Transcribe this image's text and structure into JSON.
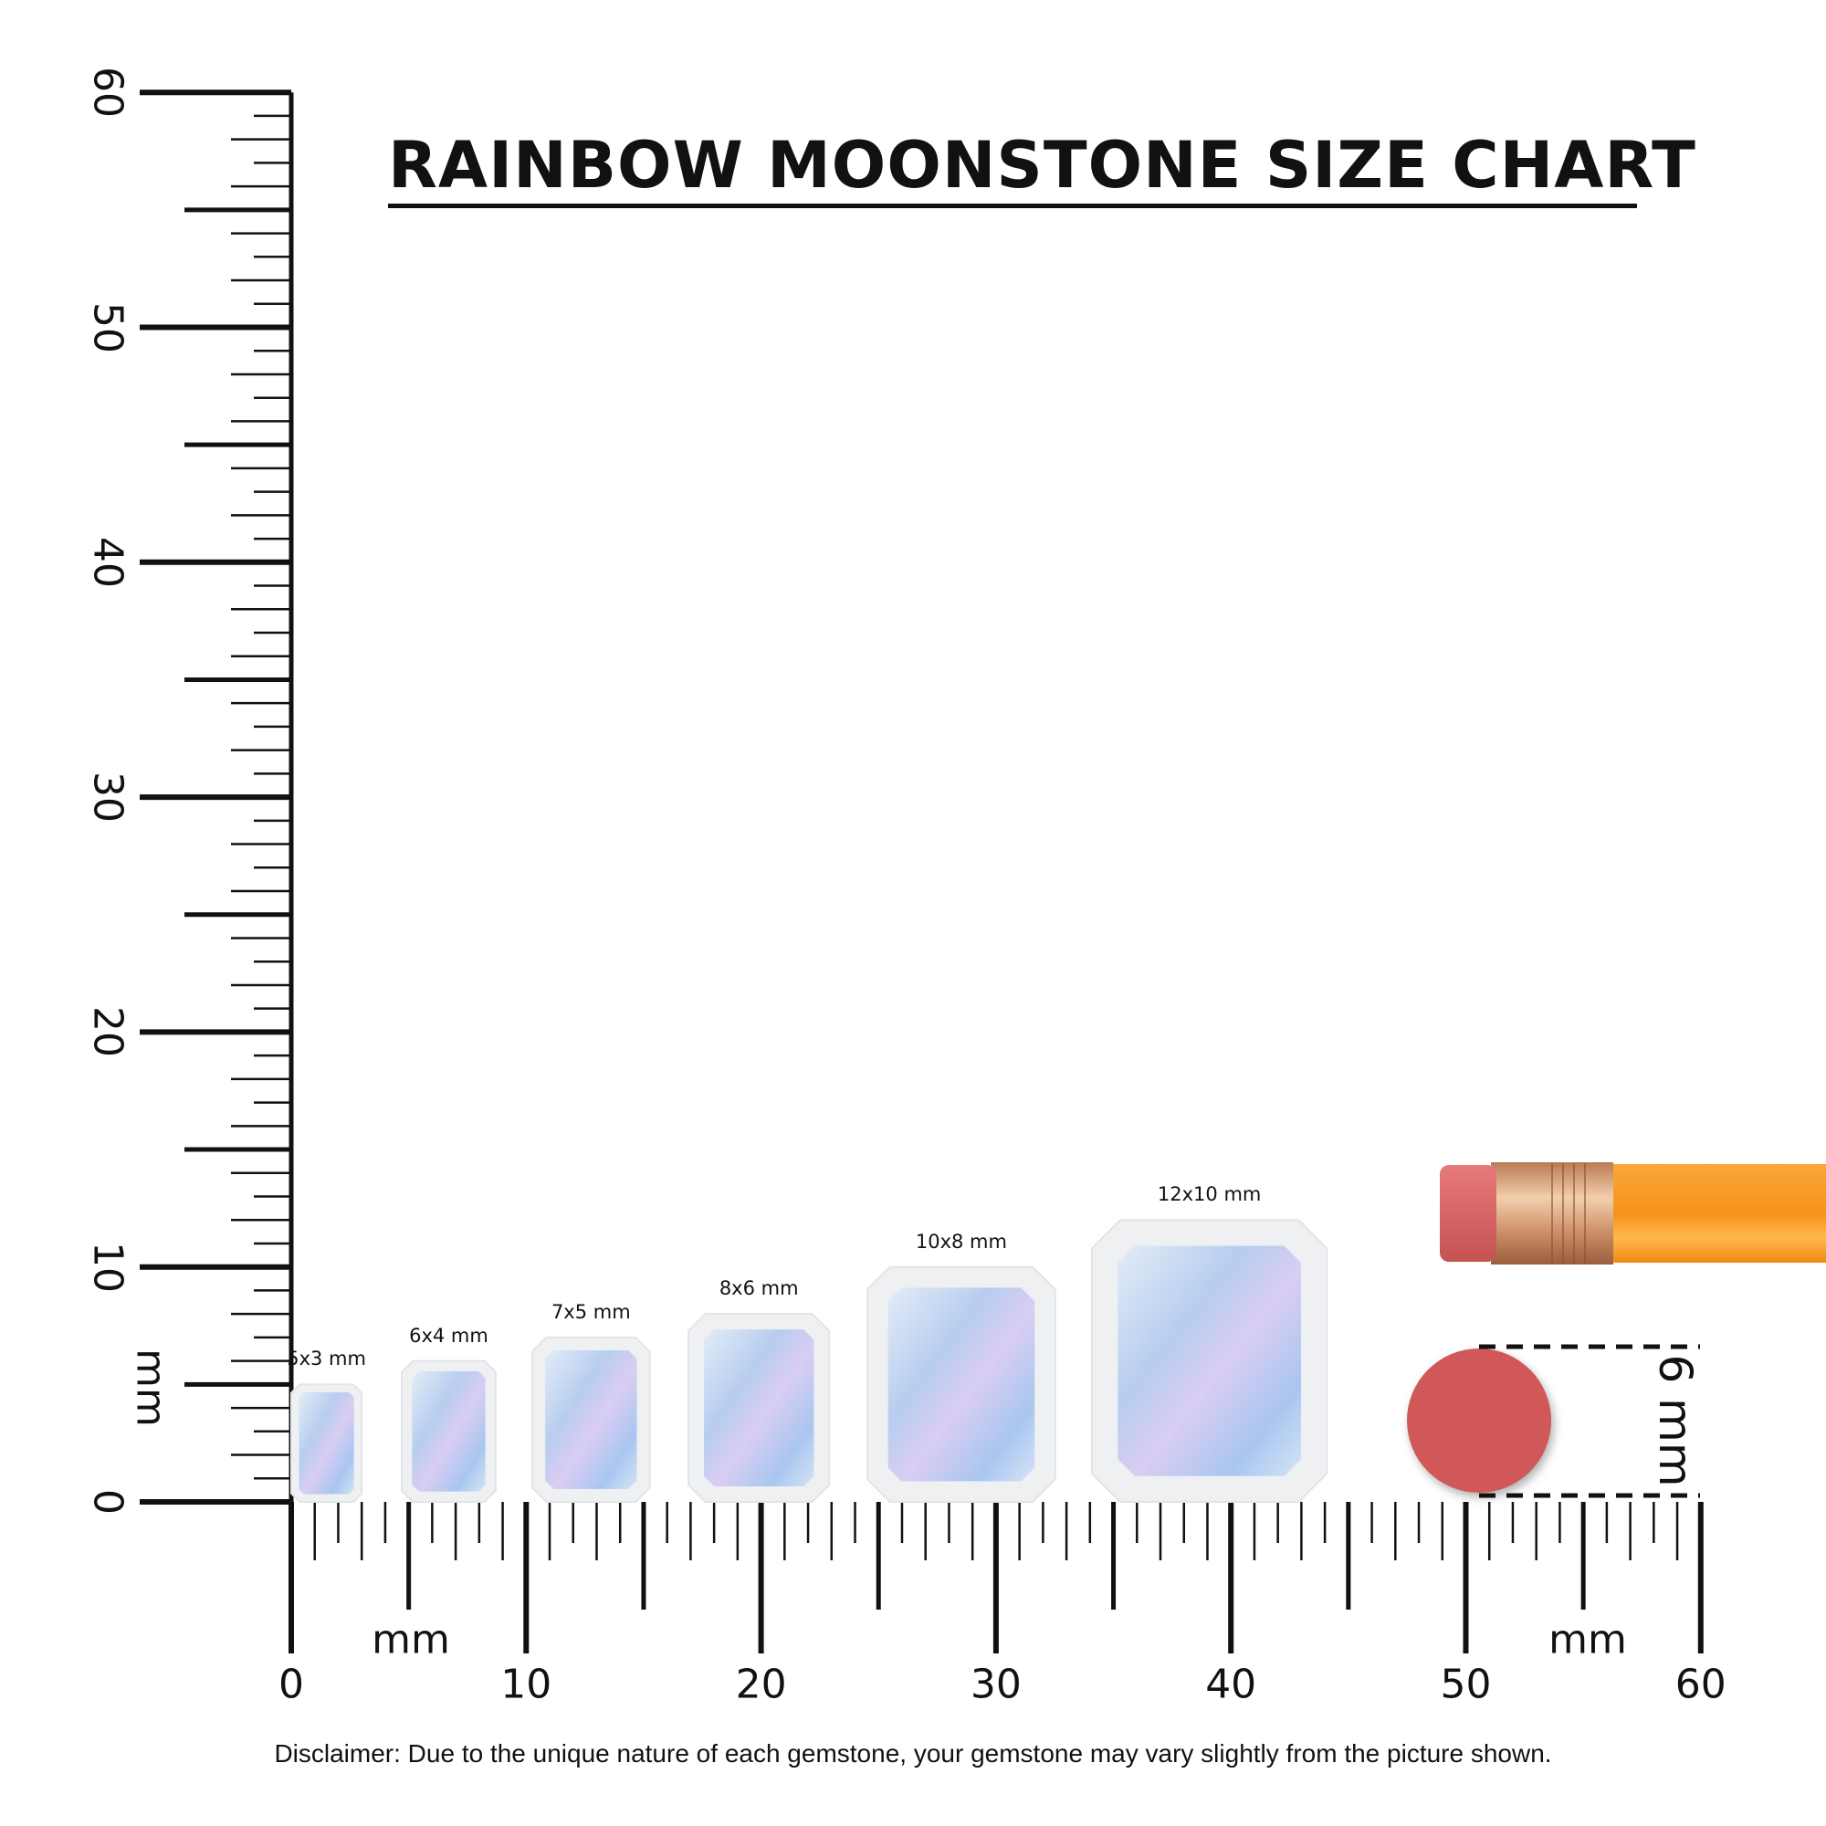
{
  "title": "RAINBOW MOONSTONE SIZE CHART",
  "ruler": {
    "unit_label": "mm",
    "range_mm": [
      0,
      60
    ],
    "labels": [
      "0",
      "10",
      "20",
      "30",
      "40",
      "50",
      "60"
    ]
  },
  "gems": [
    {
      "label": "5x3 mm",
      "length_mm": 5,
      "width_mm": 3
    },
    {
      "label": "6x4 mm",
      "length_mm": 6,
      "width_mm": 4
    },
    {
      "label": "7x5 mm",
      "length_mm": 7,
      "width_mm": 5
    },
    {
      "label": "8x6 mm",
      "length_mm": 8,
      "width_mm": 6
    },
    {
      "label": "10x8 mm",
      "length_mm": 10,
      "width_mm": 8
    },
    {
      "label": "12x10 mm",
      "length_mm": 12,
      "width_mm": 10
    }
  ],
  "reference": {
    "object": "pencil eraser",
    "size_label": "6 mm",
    "diameter_mm": 6,
    "colors": {
      "eraser": "#d05858",
      "pencil_body": "#f7941d",
      "ferrule": "#d9a27a"
    }
  },
  "disclaimer": "Disclaimer: Due to the unique nature of each gemstone, your gemstone may vary slightly from the picture shown.",
  "colors": {
    "ink": "#111111",
    "gem_face": "#b9d3f2",
    "gem_rim": "#eef0f2"
  }
}
